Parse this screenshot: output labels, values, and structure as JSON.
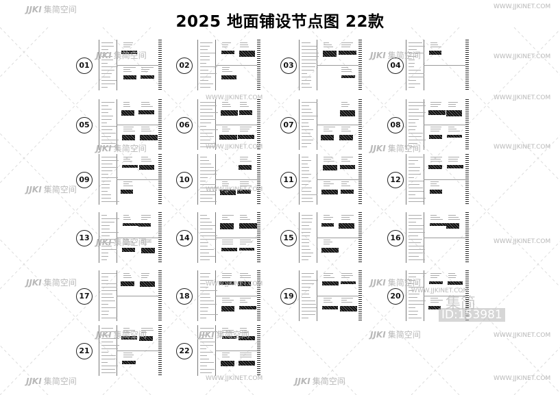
{
  "title": "2025 地面铺设节点图 22款",
  "items": [
    {
      "label": "01"
    },
    {
      "label": "02"
    },
    {
      "label": "03"
    },
    {
      "label": "04"
    },
    {
      "label": "05"
    },
    {
      "label": "06"
    },
    {
      "label": "07"
    },
    {
      "label": "08"
    },
    {
      "label": "09"
    },
    {
      "label": "10"
    },
    {
      "label": "11"
    },
    {
      "label": "12"
    },
    {
      "label": "13"
    },
    {
      "label": "14"
    },
    {
      "label": "15"
    },
    {
      "label": "16"
    },
    {
      "label": "17"
    },
    {
      "label": "18"
    },
    {
      "label": "19"
    },
    {
      "label": "20"
    },
    {
      "label": "21"
    },
    {
      "label": "22"
    }
  ],
  "watermark": {
    "logo": "JJKI",
    "cn": "集简空间",
    "url": "WWW.JJKINET.COM",
    "big_cn": "集简",
    "id": "ID:153981"
  }
}
